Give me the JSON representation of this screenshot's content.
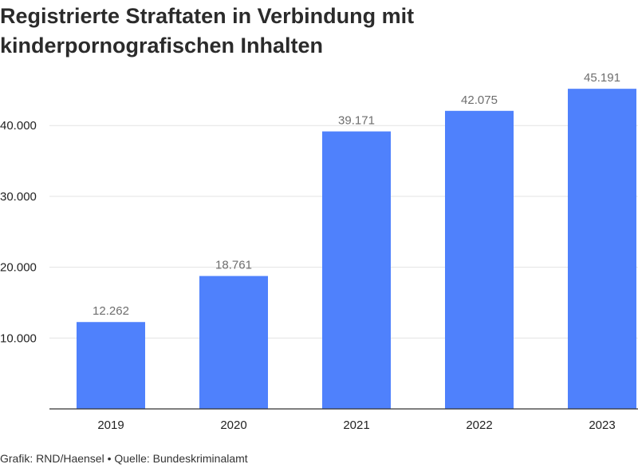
{
  "chart_data": {
    "type": "bar",
    "title_lines": [
      "Registrierte Straftaten in Verbindung mit",
      "kinderpornografischen Inhalten"
    ],
    "categories": [
      "2019",
      "2020",
      "2021",
      "2022",
      "2023"
    ],
    "values": [
      12262,
      18761,
      39171,
      42075,
      45191
    ],
    "value_labels": [
      "12.262",
      "18.761",
      "39.171",
      "42.075",
      "45.191"
    ],
    "y_ticks": [
      10000,
      20000,
      30000,
      40000
    ],
    "y_tick_labels": [
      "10.000",
      "20.000",
      "30.000",
      "40.000"
    ],
    "ylim": [
      0,
      50000
    ],
    "xlabel": "",
    "ylabel": "",
    "grid": true,
    "colors": {
      "bar": "#4f81fc"
    }
  },
  "footer": {
    "source": "Grafik: RND/Haensel • Quelle: Bundeskriminalamt"
  }
}
